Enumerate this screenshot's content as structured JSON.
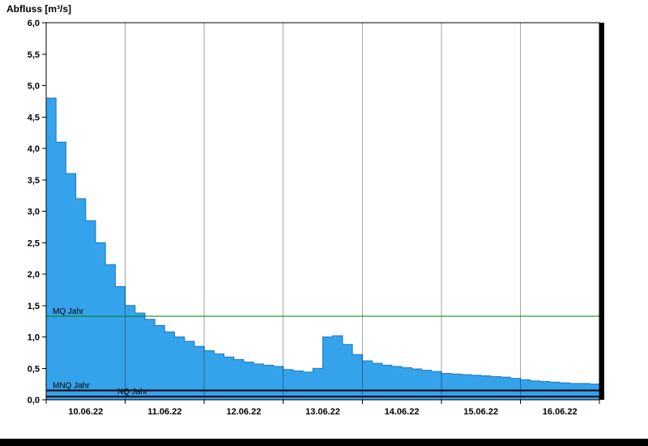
{
  "chart_data": {
    "type": "area",
    "step": true,
    "title": "Abfluss [m³/s]",
    "ylabel": "Abfluss [m³/s]",
    "xlabel": "",
    "ylim": [
      0,
      6
    ],
    "ytick_step": 0.5,
    "y_tick_labels": [
      "0,0",
      "0,5",
      "1,0",
      "1,5",
      "2,0",
      "2,5",
      "3,0",
      "3,5",
      "4,0",
      "4,5",
      "5,0",
      "5,5",
      "6,0"
    ],
    "x_days": [
      "10.06.22",
      "11.06.22",
      "12.06.22",
      "13.06.22",
      "14.06.22",
      "15.06.22",
      "16.06.22"
    ],
    "interval_hours": 3,
    "grid": "vertical-day-boundaries",
    "legend_position": "none",
    "values": [
      4.8,
      4.1,
      3.6,
      3.2,
      2.85,
      2.5,
      2.15,
      1.8,
      1.5,
      1.38,
      1.28,
      1.18,
      1.08,
      1.0,
      0.93,
      0.85,
      0.78,
      0.73,
      0.68,
      0.64,
      0.6,
      0.57,
      0.55,
      0.53,
      0.48,
      0.46,
      0.44,
      0.5,
      1.0,
      1.02,
      0.88,
      0.72,
      0.62,
      0.58,
      0.55,
      0.53,
      0.51,
      0.49,
      0.47,
      0.45,
      0.42,
      0.41,
      0.4,
      0.39,
      0.38,
      0.37,
      0.36,
      0.34,
      0.32,
      0.3,
      0.29,
      0.28,
      0.27,
      0.26,
      0.26,
      0.25
    ],
    "reference_lines": [
      {
        "label": "MQ Jahr",
        "value": 1.33,
        "color": "#007a00"
      },
      {
        "label": "MNQ Jahr",
        "value": 0.15,
        "color": "#000000"
      },
      {
        "label": "NQ Jahr",
        "value": 0.05,
        "color": "#000000"
      }
    ],
    "fill_color": "#35a2ec",
    "line_color": "#1877c0",
    "axis_color": "#000000",
    "grid_color": "rgba(0,0,0,0.35)"
  }
}
